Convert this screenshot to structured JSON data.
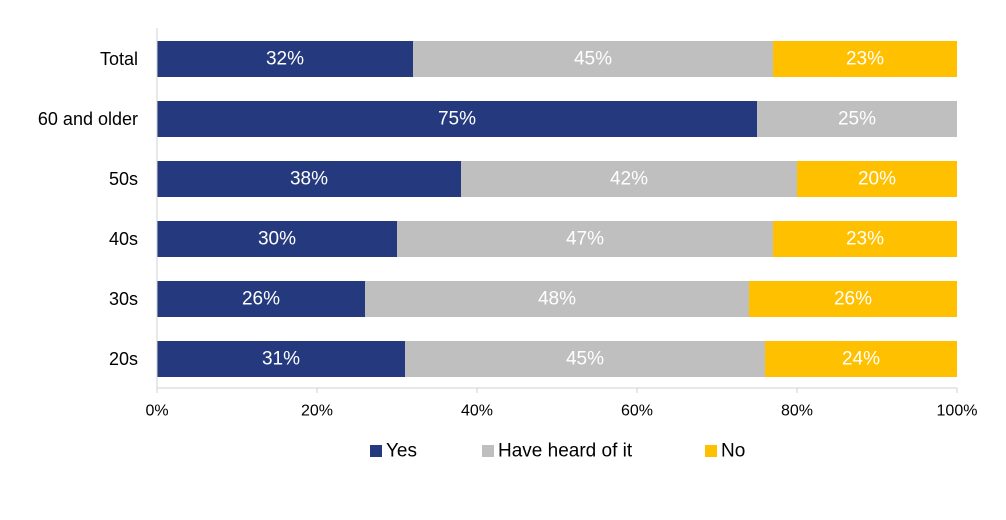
{
  "chart_data": {
    "type": "bar",
    "orientation": "horizontal",
    "stacked": true,
    "categories": [
      "Total",
      "60 and older",
      "50s",
      "40s",
      "30s",
      "20s"
    ],
    "series": [
      {
        "name": "Yes",
        "color": "#253A7E",
        "values": [
          32,
          75,
          38,
          30,
          26,
          31
        ],
        "labels": [
          "32%",
          "75%",
          "38%",
          "30%",
          "26%",
          "31%"
        ]
      },
      {
        "name": "Have heard of it",
        "color": "#BFBFBF",
        "values": [
          45,
          25,
          42,
          47,
          48,
          45
        ],
        "labels": [
          "45%",
          "25%",
          "42%",
          "47%",
          "48%",
          "45%"
        ]
      },
      {
        "name": "No",
        "color": "#FFC000",
        "values": [
          23,
          0,
          20,
          23,
          26,
          24
        ],
        "labels": [
          "23%",
          "",
          "20%",
          "23%",
          "26%",
          "24%"
        ]
      }
    ],
    "xlim": [
      0,
      100
    ],
    "xticks": [
      "0%",
      "20%",
      "40%",
      "60%",
      "80%",
      "100%"
    ],
    "grid": false,
    "legend_position": "bottom"
  }
}
